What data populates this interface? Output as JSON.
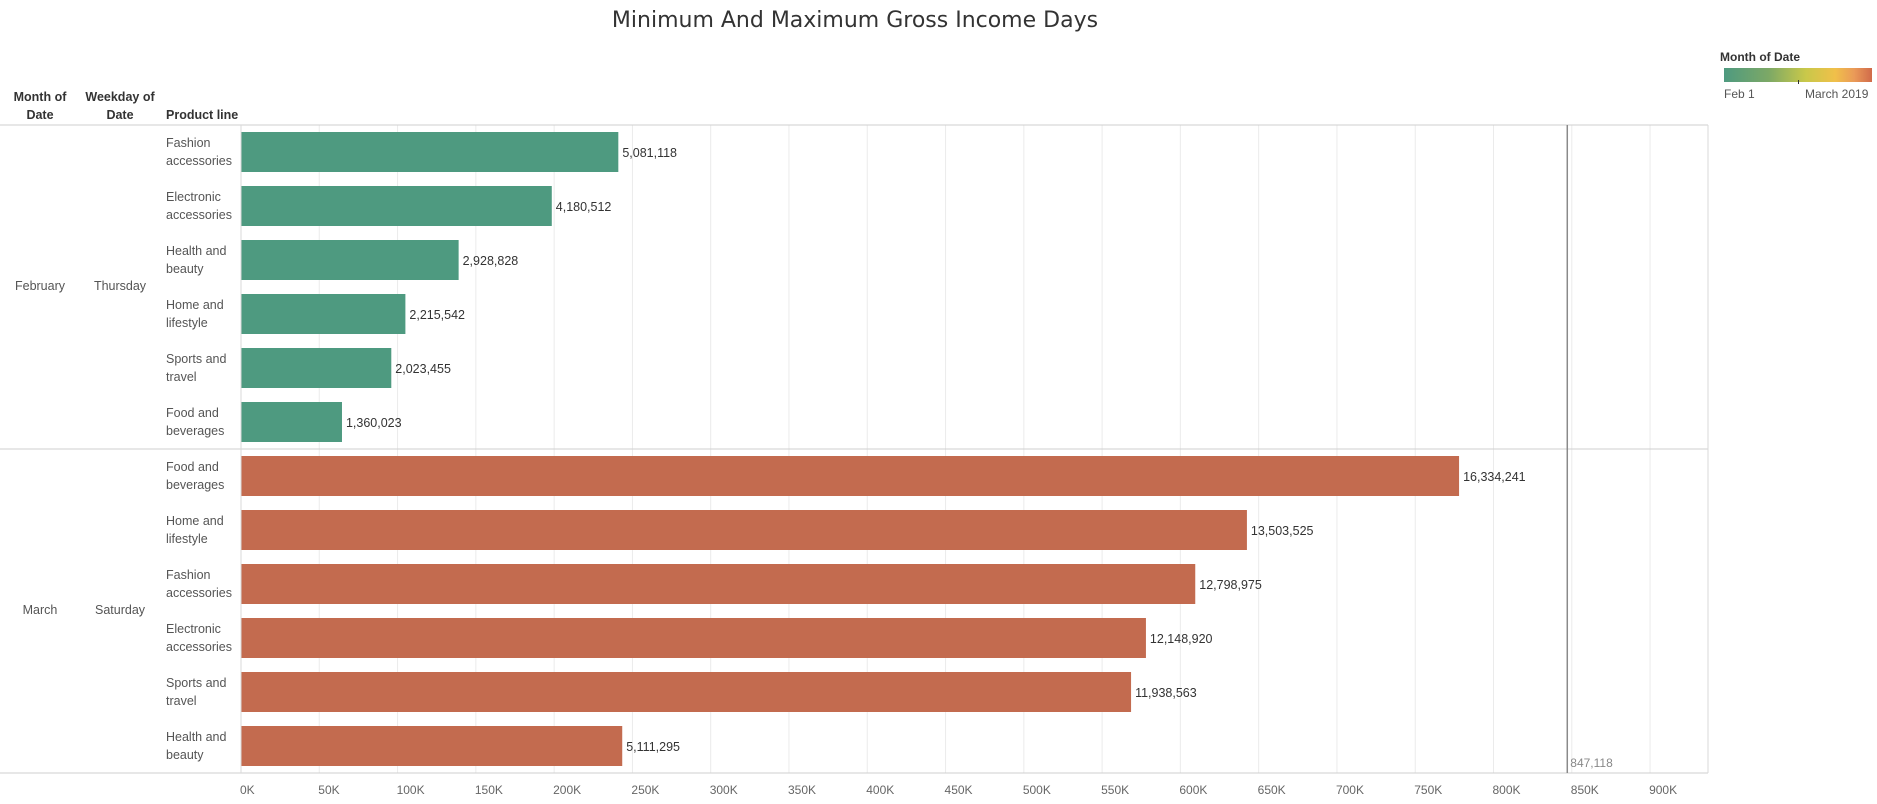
{
  "title": "Minimum And Maximum Gross Income Days",
  "headers": {
    "month": "Month of Date",
    "weekday": "Weekday of Date",
    "product": "Product line"
  },
  "legend": {
    "title": "Month of Date",
    "min_label": "Feb 1",
    "max_label": "March 2019"
  },
  "groups": [
    {
      "month": "February",
      "weekday": "Thursday"
    },
    {
      "month": "March",
      "weekday": "Saturday"
    }
  ],
  "reference_line": {
    "value": 847118,
    "label": "847,118"
  },
  "chart_data": {
    "type": "bar",
    "orientation": "horizontal",
    "title": "Minimum And Maximum Gross Income Days",
    "xlim": [
      0,
      937000
    ],
    "x_ticks": [
      "0K",
      "50K",
      "100K",
      "150K",
      "200K",
      "250K",
      "300K",
      "350K",
      "400K",
      "450K",
      "500K",
      "550K",
      "600K",
      "650K",
      "700K",
      "750K",
      "800K",
      "850K",
      "900K"
    ],
    "grid": true,
    "colors": {
      "February": "#4e9a80",
      "March": "#c36b4f"
    },
    "rows": [
      {
        "month": "February",
        "product": [
          "Fashion",
          "accessories"
        ],
        "bar_value": 241000,
        "label": "5,081,118"
      },
      {
        "month": "February",
        "product": [
          "Electronic",
          "accessories"
        ],
        "bar_value": 198500,
        "label": "4,180,512"
      },
      {
        "month": "February",
        "product": [
          "Health and",
          "beauty"
        ],
        "bar_value": 139000,
        "label": "2,928,828"
      },
      {
        "month": "February",
        "product": [
          "Home and",
          "lifestyle"
        ],
        "bar_value": 105000,
        "label": "2,215,542"
      },
      {
        "month": "February",
        "product": [
          "Sports and",
          "travel"
        ],
        "bar_value": 96000,
        "label": "2,023,455"
      },
      {
        "month": "February",
        "product": [
          "Food and",
          "beverages"
        ],
        "bar_value": 64500,
        "label": "1,360,023"
      },
      {
        "month": "March",
        "product": [
          "Food and",
          "beverages"
        ],
        "bar_value": 778000,
        "label": "16,334,241"
      },
      {
        "month": "March",
        "product": [
          "Home and",
          "lifestyle"
        ],
        "bar_value": 642500,
        "label": "13,503,525"
      },
      {
        "month": "March",
        "product": [
          "Fashion",
          "accessories"
        ],
        "bar_value": 609500,
        "label": "12,798,975"
      },
      {
        "month": "March",
        "product": [
          "Electronic",
          "accessories"
        ],
        "bar_value": 578000,
        "label": "12,148,920"
      },
      {
        "month": "March",
        "product": [
          "Sports and",
          "travel"
        ],
        "bar_value": 568500,
        "label": "11,938,563"
      },
      {
        "month": "March",
        "product": [
          "Health and",
          "beauty"
        ],
        "bar_value": 243500,
        "label": "5,111,295"
      }
    ]
  }
}
